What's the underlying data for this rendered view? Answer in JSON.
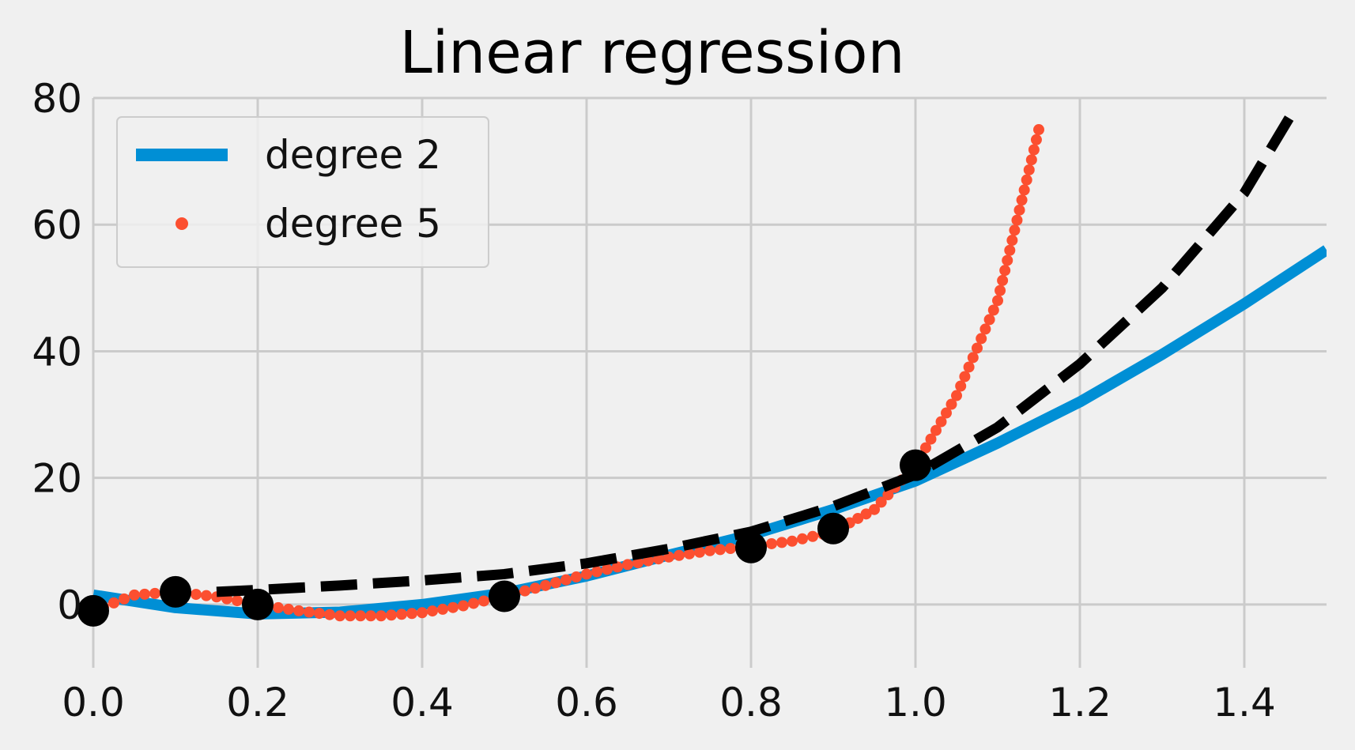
{
  "chart_data": {
    "type": "line",
    "title": "Linear regression",
    "xlabel": "",
    "ylabel": "",
    "xlim": [
      0.0,
      1.5
    ],
    "ylim": [
      -10,
      80
    ],
    "x_ticks": [
      "0.0",
      "0.2",
      "0.4",
      "0.6",
      "0.8",
      "1.0",
      "1.2",
      "1.4"
    ],
    "y_ticks": [
      "0",
      "20",
      "40",
      "60",
      "80"
    ],
    "grid": true,
    "legend": {
      "placement": "top-left",
      "entries": [
        {
          "name": "degree 2",
          "style": "solid",
          "color": "#008fd5"
        },
        {
          "name": "degree 5",
          "style": "dotted",
          "color": "#fc4f30"
        }
      ]
    },
    "samples": {
      "name": "",
      "color": "#000000",
      "points": [
        [
          0.0,
          -1.0
        ],
        [
          0.1,
          2.0
        ],
        [
          0.2,
          0.0
        ],
        [
          0.5,
          1.3
        ],
        [
          0.8,
          9.0
        ],
        [
          0.9,
          12.0
        ],
        [
          1.0,
          22.0
        ]
      ]
    },
    "series": [
      {
        "name": "degree 2",
        "color": "#008fd5",
        "x": [
          0.0,
          0.1,
          0.2,
          0.3,
          0.4,
          0.5,
          0.6,
          0.7,
          0.8,
          0.9,
          1.0,
          1.1,
          1.2,
          1.3,
          1.4,
          1.5
        ],
        "y": [
          1.5,
          -0.5,
          -1.5,
          -1.2,
          0.0,
          1.8,
          4.5,
          7.8,
          11.0,
          15.0,
          19.5,
          25.5,
          32.0,
          39.5,
          47.5,
          56.0
        ]
      },
      {
        "name": "degree 5",
        "color": "#fc4f30",
        "x": [
          0.0,
          0.05,
          0.1,
          0.15,
          0.2,
          0.25,
          0.3,
          0.35,
          0.4,
          0.45,
          0.5,
          0.55,
          0.6,
          0.65,
          0.7,
          0.75,
          0.8,
          0.85,
          0.9,
          0.95,
          1.0,
          1.05,
          1.1,
          1.15
        ],
        "y": [
          -1.0,
          1.5,
          2.0,
          1.2,
          0.0,
          -1.0,
          -1.8,
          -1.8,
          -1.3,
          -0.2,
          1.3,
          3.0,
          4.8,
          6.3,
          7.5,
          8.5,
          9.2,
          10.0,
          11.5,
          15.0,
          22.0,
          33.0,
          48.0,
          75.0
        ]
      },
      {
        "name": "",
        "style": "dashed",
        "color": "#000000",
        "x": [
          0.15,
          0.2,
          0.3,
          0.4,
          0.5,
          0.6,
          0.7,
          0.8,
          0.9,
          1.0,
          1.1,
          1.2,
          1.3,
          1.4,
          1.46
        ],
        "y": [
          2.0,
          2.3,
          3.0,
          3.8,
          4.8,
          6.5,
          8.8,
          11.5,
          15.5,
          20.5,
          28.0,
          38.0,
          50.0,
          65.0,
          78.0
        ]
      }
    ]
  }
}
